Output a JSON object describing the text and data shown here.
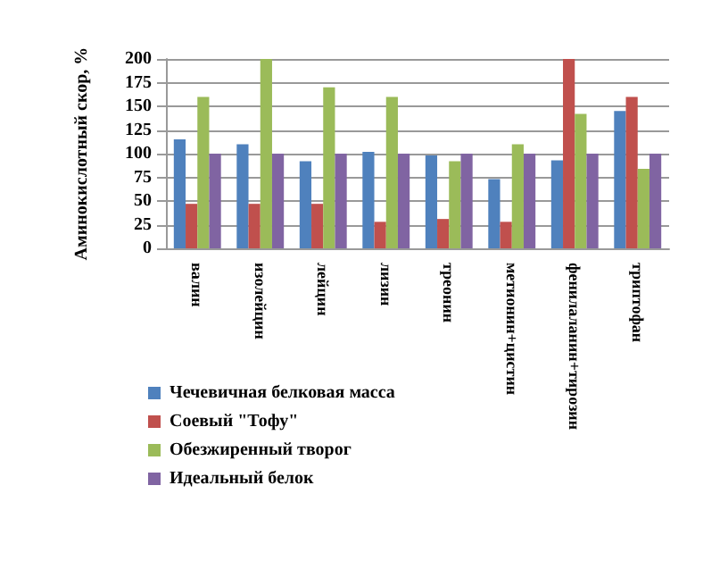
{
  "chart_data": {
    "type": "bar",
    "ylabel": "Аминокислотный скор, %",
    "categories": [
      "валин",
      "изолейцин",
      "лейцин",
      "лизин",
      "треонин",
      "метионин+цистин",
      "фенилаланин+тирозин",
      "триптофан"
    ],
    "series": [
      {
        "name": "Чечевичная белковая масса",
        "color": "#4f81bd",
        "values": [
          115,
          110,
          92,
          102,
          98,
          73,
          93,
          145
        ]
      },
      {
        "name": "Соевый \"Тофу\"",
        "color": "#c0504d",
        "values": [
          47,
          47,
          47,
          28,
          31,
          28,
          200,
          160
        ]
      },
      {
        "name": "Обезжиренный творог",
        "color": "#9bbb59",
        "values": [
          160,
          200,
          170,
          160,
          92,
          110,
          142,
          84
        ]
      },
      {
        "name": "Идеальный белок",
        "color": "#8064a2",
        "values": [
          100,
          100,
          100,
          100,
          100,
          100,
          100,
          100
        ]
      }
    ],
    "ylim": [
      0,
      200
    ],
    "yticks": [
      0,
      25,
      50,
      75,
      100,
      125,
      150,
      175,
      200
    ],
    "grid": "y",
    "legend": "bottom left"
  }
}
